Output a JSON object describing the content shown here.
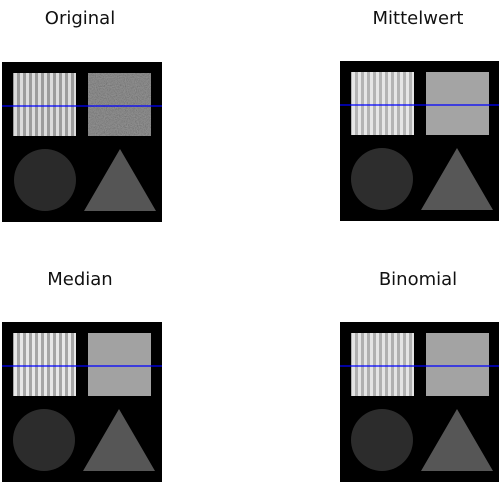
{
  "panels": [
    {
      "title": "Original"
    },
    {
      "title": "Mittelwert"
    },
    {
      "title": "Median"
    },
    {
      "title": "Binomial"
    }
  ],
  "colors": {
    "background": "#000000",
    "profile_line": "#0000ff",
    "noise_square": "#9a9a9a",
    "circle": "#2b2b2b",
    "triangle": "#555555",
    "stripes_light": "#e8e8e8",
    "stripes_dark": "#a8a8a8"
  }
}
